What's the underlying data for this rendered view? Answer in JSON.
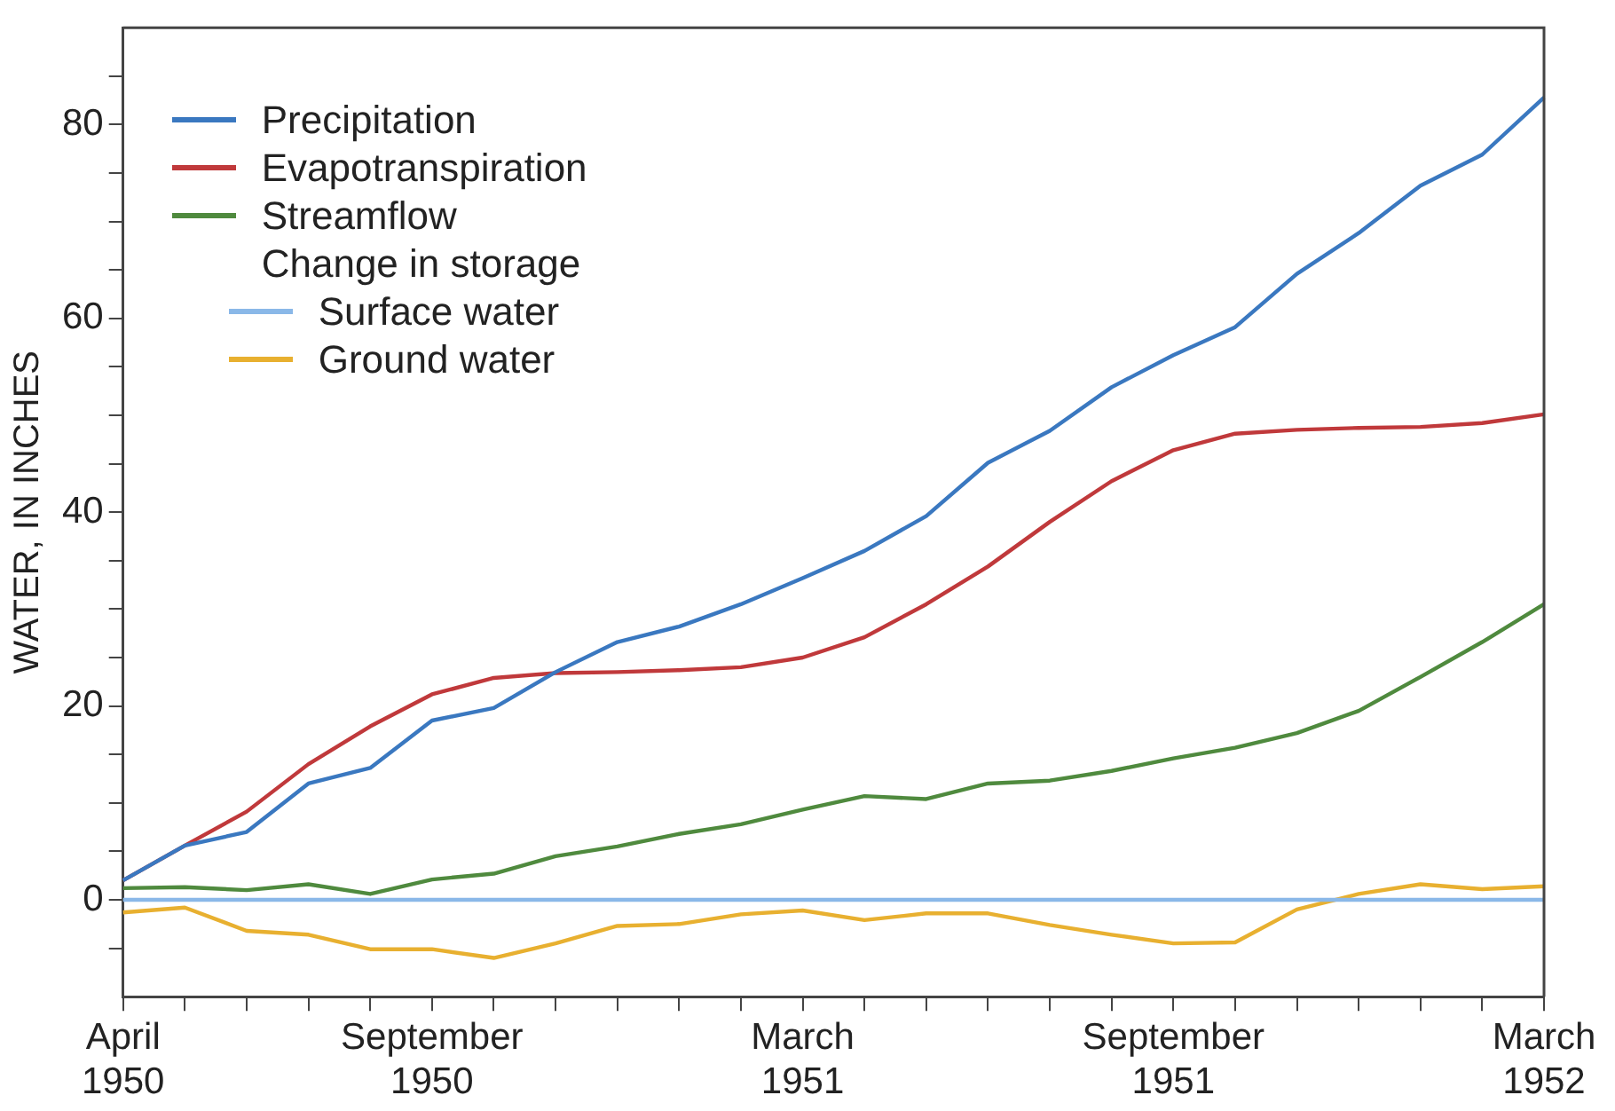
{
  "chart_data": {
    "type": "line",
    "ylabel": "WATER, IN INCHES",
    "legend": "top left",
    "legend_title": "Change in storage",
    "categories": [
      "April 1950",
      null,
      null,
      null,
      null,
      "September 1950",
      null,
      null,
      null,
      null,
      null,
      "March 1951",
      null,
      null,
      null,
      null,
      null,
      "September 1951",
      null,
      null,
      null,
      null,
      null,
      "March 1952"
    ],
    "ylim": [
      -10,
      90
    ],
    "yticks": [
      {
        "value": -5,
        "label": null
      },
      0,
      {
        "value": 5,
        "label": null
      },
      {
        "value": 10,
        "label": null
      },
      {
        "value": 15,
        "label": null
      },
      20,
      {
        "value": 25,
        "label": null
      },
      {
        "value": 30,
        "label": null
      },
      {
        "value": 35,
        "label": null
      },
      40,
      {
        "value": 45,
        "label": null
      },
      {
        "value": 50,
        "label": null
      },
      {
        "value": 55,
        "label": null
      },
      60,
      {
        "value": 65,
        "label": null
      },
      {
        "value": 70,
        "label": null
      },
      {
        "value": 75,
        "label": null
      },
      80,
      {
        "value": 85,
        "label": null
      }
    ],
    "series": [
      {
        "name": "Precipitation",
        "color": "#3a78c0",
        "values": [
          2,
          5.6,
          7,
          12,
          13.6,
          18.5,
          19.8,
          23.5,
          26.6,
          28.2,
          30.5,
          33.2,
          36,
          39.6,
          45.1,
          48.4,
          52.9,
          56.2,
          59.1,
          64.6,
          68.8,
          73.7,
          76.9,
          82.8
        ]
      },
      {
        "name": "Evapotranspiration",
        "color": "#c0393b",
        "values": [
          2,
          5.6,
          9.1,
          14,
          17.9,
          21.2,
          22.9,
          23.4,
          23.5,
          23.7,
          24,
          25,
          27.1,
          30.5,
          34.4,
          39,
          43.2,
          46.4,
          48.1,
          48.5,
          48.7,
          48.8,
          49.2,
          50.1
        ]
      },
      {
        "name": "Streamflow",
        "color": "#4f8a3e",
        "values": [
          1.2,
          1.3,
          1,
          1.6,
          0.6,
          2.1,
          2.7,
          4.5,
          5.5,
          6.8,
          7.8,
          9.3,
          10.7,
          10.4,
          12,
          12.3,
          13.3,
          14.6,
          15.7,
          17.2,
          19.5,
          23,
          26.6,
          30.5
        ]
      },
      {
        "name": "Surface water",
        "color": "#8ab8e8",
        "values": [
          0,
          0,
          0,
          0,
          0,
          0,
          0,
          0,
          0,
          0,
          0,
          0,
          0,
          0,
          0,
          0,
          0,
          0,
          0,
          0,
          0,
          0,
          0,
          0
        ]
      },
      {
        "name": "Ground water",
        "color": "#e8b030",
        "values": [
          -1.3,
          -0.8,
          -3.2,
          -3.6,
          -5.1,
          -5.1,
          -6,
          -4.5,
          -2.7,
          -2.5,
          -1.5,
          -1.1,
          -2.1,
          -1.4,
          -1.4,
          -2.6,
          -3.6,
          -4.5,
          -4.4,
          -1,
          0.6,
          1.6,
          1.1,
          1.4
        ]
      }
    ]
  }
}
